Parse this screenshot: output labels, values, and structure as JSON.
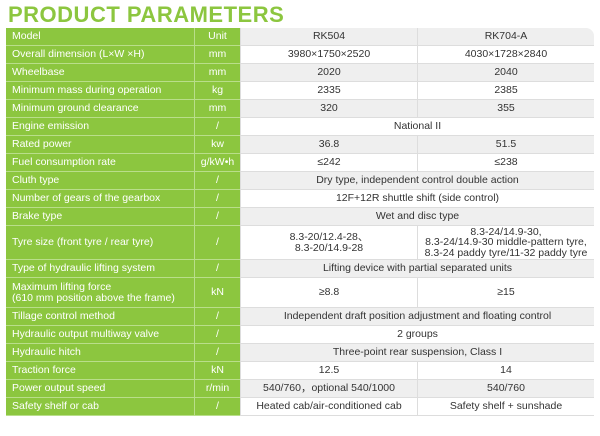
{
  "header": {
    "title": "PRODUCT PARAMETERS"
  },
  "table": {
    "header": {
      "label": "Model",
      "unit": "Unit",
      "values": [
        "RK504",
        "RK704-A"
      ]
    },
    "rows": [
      {
        "label": "Overall dimension (L×W ×H)",
        "unit": "mm",
        "values": [
          "3980×1750×2520",
          "4030×1728×2840"
        ]
      },
      {
        "label": "Wheelbase",
        "unit": "mm",
        "values": [
          "2020",
          "2040"
        ]
      },
      {
        "label": "Minimum mass during operation",
        "unit": "kg",
        "values": [
          "2335",
          "2385"
        ]
      },
      {
        "label": "Minimum ground clearance",
        "unit": "mm",
        "values": [
          "320",
          "355"
        ]
      },
      {
        "label": "Engine emission",
        "unit": "/",
        "values": [
          "National II"
        ]
      },
      {
        "label": "Rated power",
        "unit": "kw",
        "values": [
          "36.8",
          "51.5"
        ]
      },
      {
        "label": "Fuel consumption rate",
        "unit": "g/kW•h",
        "values": [
          "≤242",
          "≤238"
        ]
      },
      {
        "label": "Cluth type",
        "unit": "/",
        "values": [
          "Dry type, independent control double action"
        ]
      },
      {
        "label": "Number of gears of the gearbox",
        "unit": "/",
        "values": [
          "12F+12R shuttle shift (side control)"
        ]
      },
      {
        "label": "Brake type",
        "unit": "/",
        "values": [
          "Wet and disc type"
        ]
      },
      {
        "label": "Tyre size (front tyre / rear tyre)",
        "unit": "/",
        "values": [
          "8.3-20/12.4-28、\n8.3-20/14.9-28",
          "8.3-24/14.9-30,\n8.3-24/14.9-30 middle-pattern tyre,\n8.3-24 paddy tyre/11-32 paddy tyre"
        ],
        "tall": 34
      },
      {
        "label": "Type of hydraulic lifting system",
        "unit": "/",
        "values": [
          "Lifting device with partial separated units"
        ]
      },
      {
        "label": "Maximum lifting force\n(610 mm position above the frame)",
        "unit": "kN",
        "values": [
          "≥8.8",
          "≥15"
        ],
        "tall": 30
      },
      {
        "label": "Tillage control method",
        "unit": "/",
        "values": [
          "Independent draft position adjustment and floating control"
        ]
      },
      {
        "label": "Hydraulic output multiway valve",
        "unit": "/",
        "values": [
          "2 groups"
        ]
      },
      {
        "label": "Hydraulic hitch",
        "unit": "/",
        "values": [
          "Three-point rear suspension, Class I"
        ]
      },
      {
        "label": "Traction force",
        "unit": "kN",
        "values": [
          "12.5",
          "14"
        ]
      },
      {
        "label": "Power output speed",
        "unit": "r/min",
        "values": [
          "540/760，optional 540/1000",
          "540/760"
        ]
      },
      {
        "label": "Safety shelf or cab",
        "unit": "/",
        "values": [
          "Heated cab/air-conditioned cab",
          "Safety shelf + sunshade"
        ]
      }
    ]
  }
}
